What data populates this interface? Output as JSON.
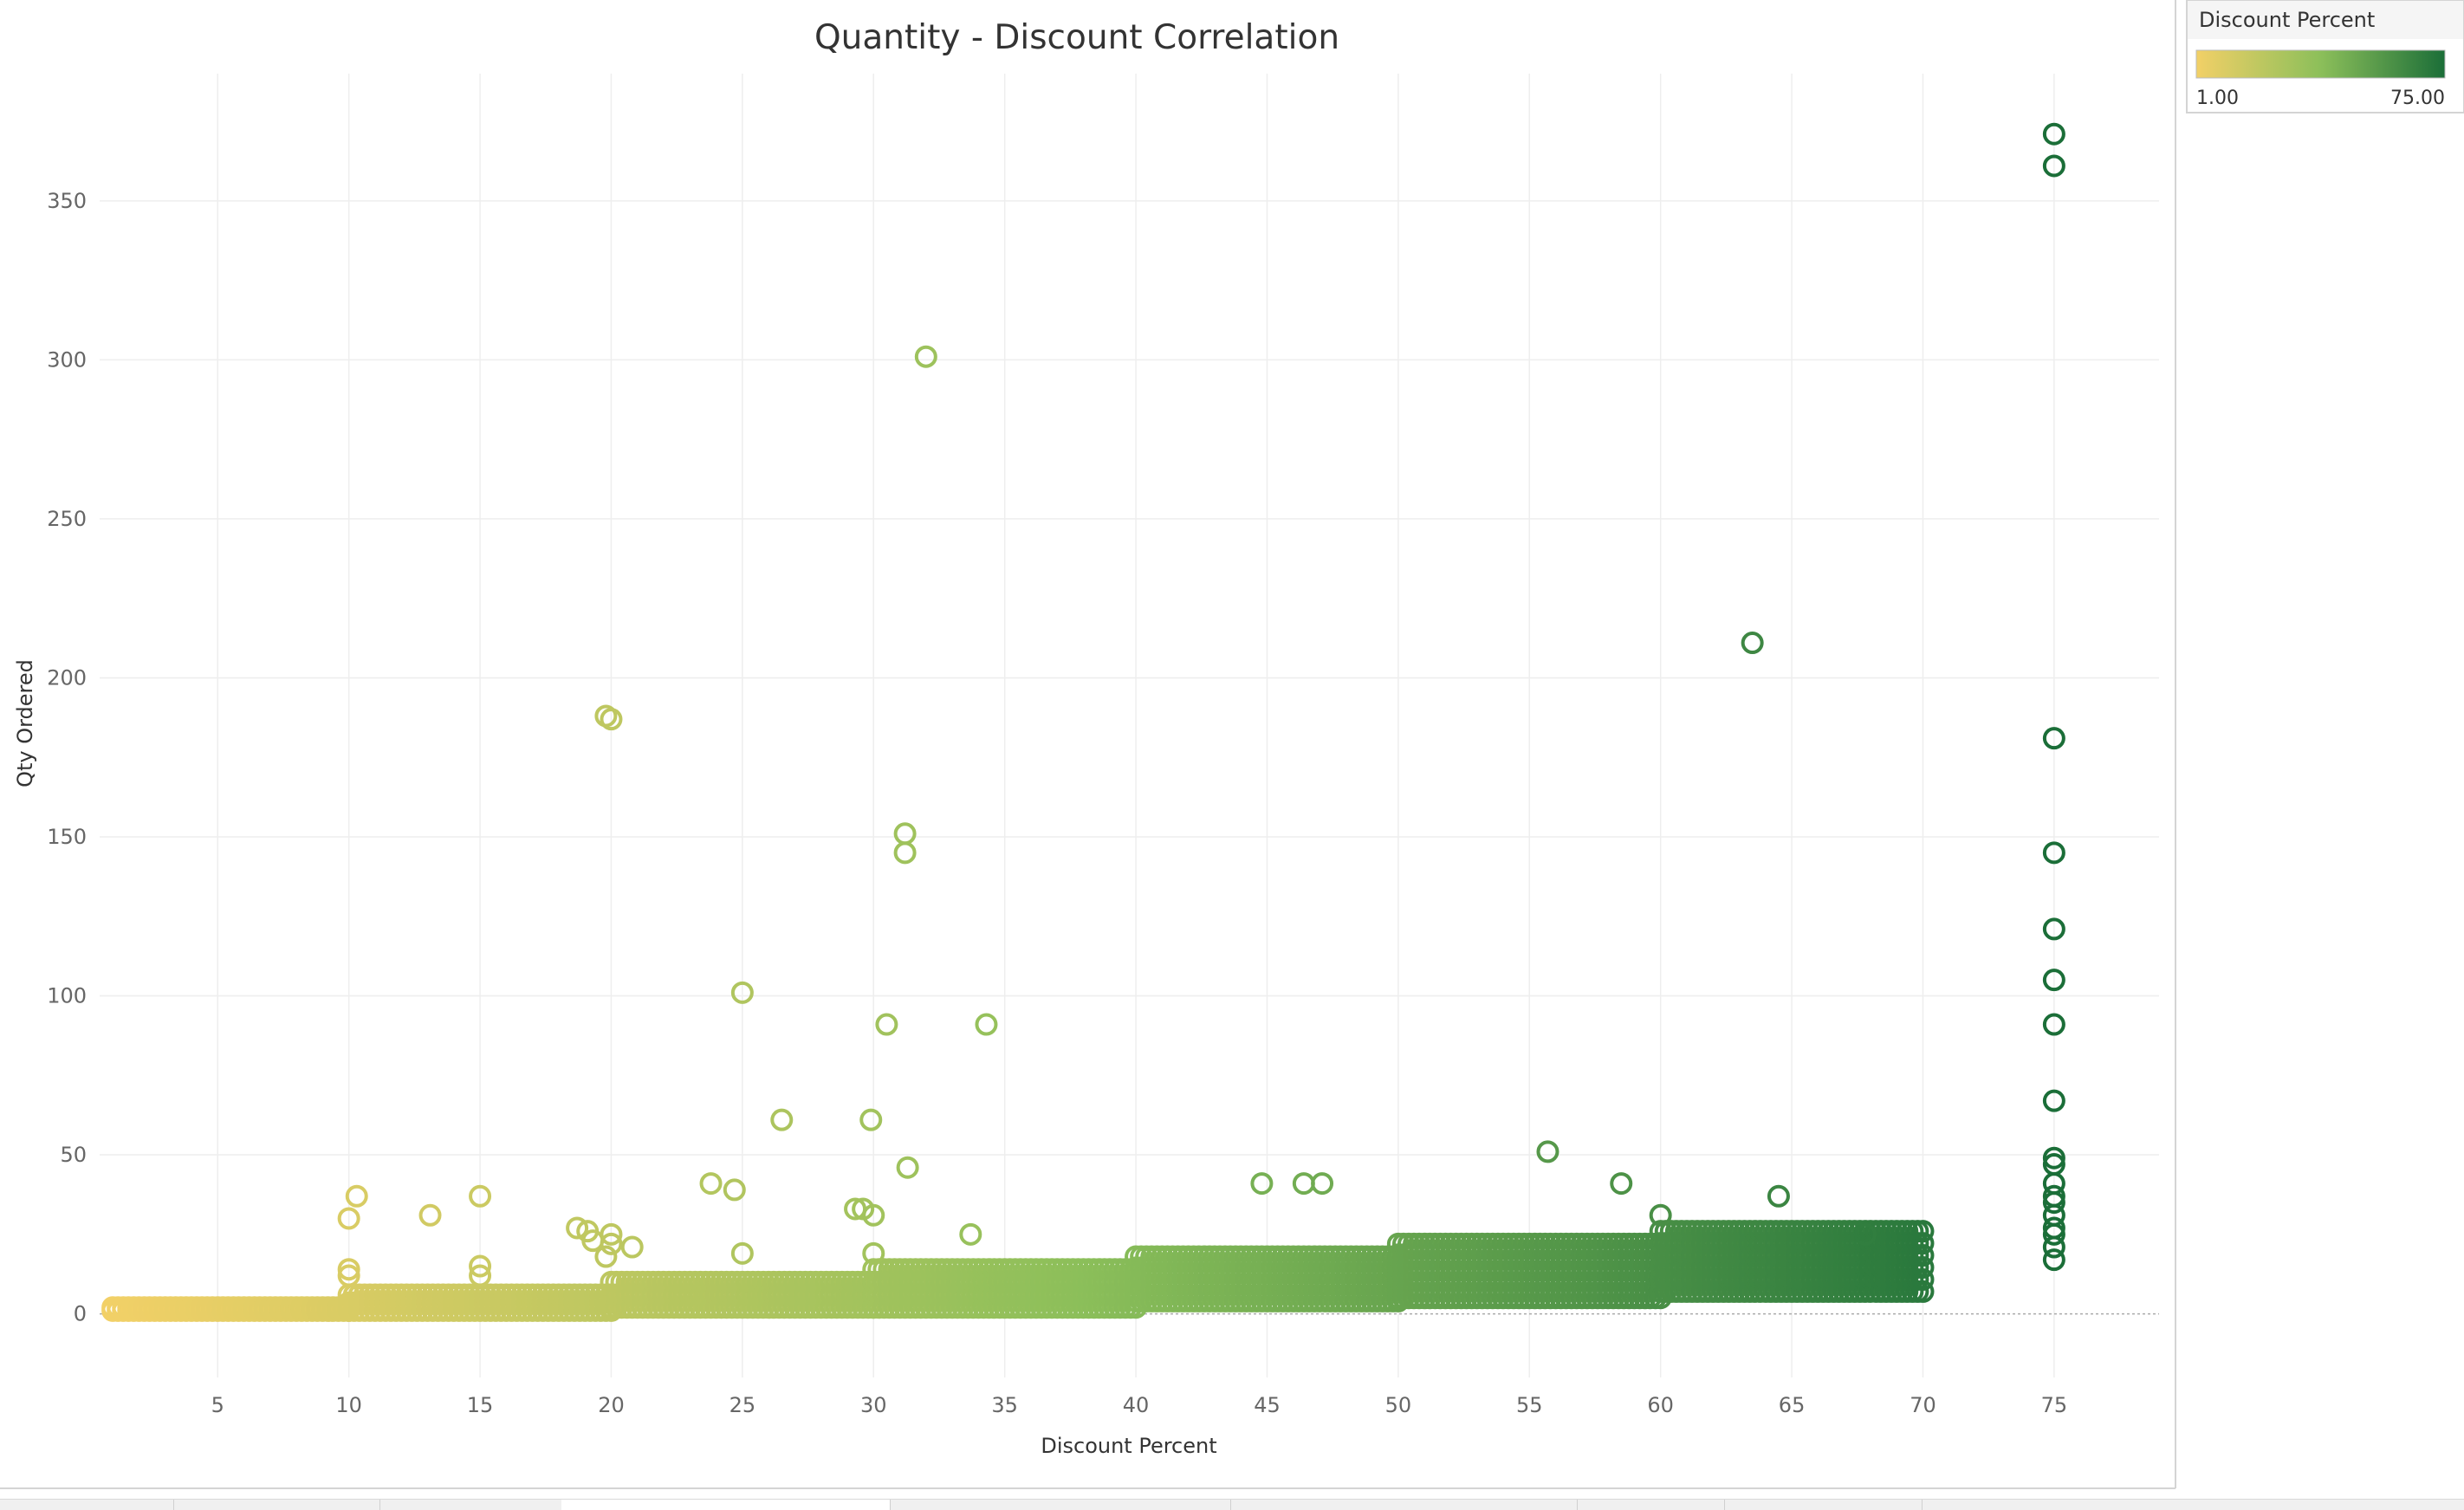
{
  "chart_data": {
    "type": "scatter",
    "title": "Quantity - Discount Correlation",
    "xlabel": "Discount Percent",
    "ylabel": "Qty Ordered",
    "xlim": [
      0.5,
      79
    ],
    "ylim": [
      -20,
      390
    ],
    "x_ticks": [
      5,
      10,
      15,
      20,
      25,
      30,
      35,
      40,
      45,
      50,
      55,
      60,
      65,
      70,
      75
    ],
    "y_ticks": [
      0,
      50,
      100,
      150,
      200,
      250,
      300,
      350
    ],
    "grid": true,
    "marker": "open-circle",
    "color_legend": {
      "title": "Discount Percent",
      "min_label": "1.00",
      "max_label": "75.00",
      "min": 1,
      "max": 75,
      "color_low": "#f2d067",
      "color_mid": "#8cbf5a",
      "color_high": "#1b6e38",
      "placement": "top-right"
    },
    "dense_band": {
      "description": "continuous band of overlapping points",
      "segments": [
        {
          "x_start": 1,
          "x_end": 10,
          "y_low": 1,
          "y_high": 2
        },
        {
          "x_start": 10,
          "x_end": 20,
          "y_low": 1,
          "y_high": 6
        },
        {
          "x_start": 20,
          "x_end": 30,
          "y_low": 2,
          "y_high": 10
        },
        {
          "x_start": 30,
          "x_end": 40,
          "y_low": 2,
          "y_high": 14
        },
        {
          "x_start": 40,
          "x_end": 50,
          "y_low": 4,
          "y_high": 18
        },
        {
          "x_start": 50,
          "x_end": 60,
          "y_low": 5,
          "y_high": 22
        },
        {
          "x_start": 60,
          "x_end": 70,
          "y_low": 7,
          "y_high": 26
        }
      ]
    },
    "points": [
      {
        "x": 10,
        "y": 12
      },
      {
        "x": 10,
        "y": 14
      },
      {
        "x": 10,
        "y": 30
      },
      {
        "x": 10.3,
        "y": 37
      },
      {
        "x": 13.1,
        "y": 31
      },
      {
        "x": 15,
        "y": 12
      },
      {
        "x": 15,
        "y": 15
      },
      {
        "x": 15,
        "y": 37
      },
      {
        "x": 18.7,
        "y": 27
      },
      {
        "x": 19.1,
        "y": 26
      },
      {
        "x": 19.3,
        "y": 23
      },
      {
        "x": 19.8,
        "y": 188
      },
      {
        "x": 20,
        "y": 187
      },
      {
        "x": 19.8,
        "y": 18
      },
      {
        "x": 20,
        "y": 25
      },
      {
        "x": 20,
        "y": 22
      },
      {
        "x": 20.8,
        "y": 21
      },
      {
        "x": 23.8,
        "y": 41
      },
      {
        "x": 24.7,
        "y": 39
      },
      {
        "x": 25,
        "y": 101
      },
      {
        "x": 25,
        "y": 19
      },
      {
        "x": 26.5,
        "y": 61
      },
      {
        "x": 29.3,
        "y": 33
      },
      {
        "x": 29.6,
        "y": 33
      },
      {
        "x": 29.9,
        "y": 61
      },
      {
        "x": 30,
        "y": 31
      },
      {
        "x": 30,
        "y": 19
      },
      {
        "x": 30.5,
        "y": 91
      },
      {
        "x": 31.2,
        "y": 151
      },
      {
        "x": 31.2,
        "y": 145
      },
      {
        "x": 31.3,
        "y": 46
      },
      {
        "x": 32,
        "y": 301
      },
      {
        "x": 33.7,
        "y": 25
      },
      {
        "x": 34.3,
        "y": 91
      },
      {
        "x": 44.8,
        "y": 41
      },
      {
        "x": 46.4,
        "y": 41
      },
      {
        "x": 47.1,
        "y": 41
      },
      {
        "x": 55.7,
        "y": 51
      },
      {
        "x": 58.5,
        "y": 41
      },
      {
        "x": 60,
        "y": 31
      },
      {
        "x": 63.5,
        "y": 211
      },
      {
        "x": 64.5,
        "y": 37
      },
      {
        "x": 67.8,
        "y": 25
      },
      {
        "x": 75,
        "y": 371
      },
      {
        "x": 75,
        "y": 361
      },
      {
        "x": 75,
        "y": 181
      },
      {
        "x": 75,
        "y": 145
      },
      {
        "x": 75,
        "y": 121
      },
      {
        "x": 75,
        "y": 105
      },
      {
        "x": 75,
        "y": 91
      },
      {
        "x": 75,
        "y": 67
      },
      {
        "x": 75,
        "y": 49
      },
      {
        "x": 75,
        "y": 47
      },
      {
        "x": 75,
        "y": 41
      },
      {
        "x": 75,
        "y": 37
      },
      {
        "x": 75,
        "y": 35
      },
      {
        "x": 75,
        "y": 31
      },
      {
        "x": 75,
        "y": 27
      },
      {
        "x": 75,
        "y": 25
      },
      {
        "x": 75,
        "y": 21
      },
      {
        "x": 75,
        "y": 17
      }
    ]
  },
  "tabs": {
    "count": 10,
    "active_index": 3
  }
}
